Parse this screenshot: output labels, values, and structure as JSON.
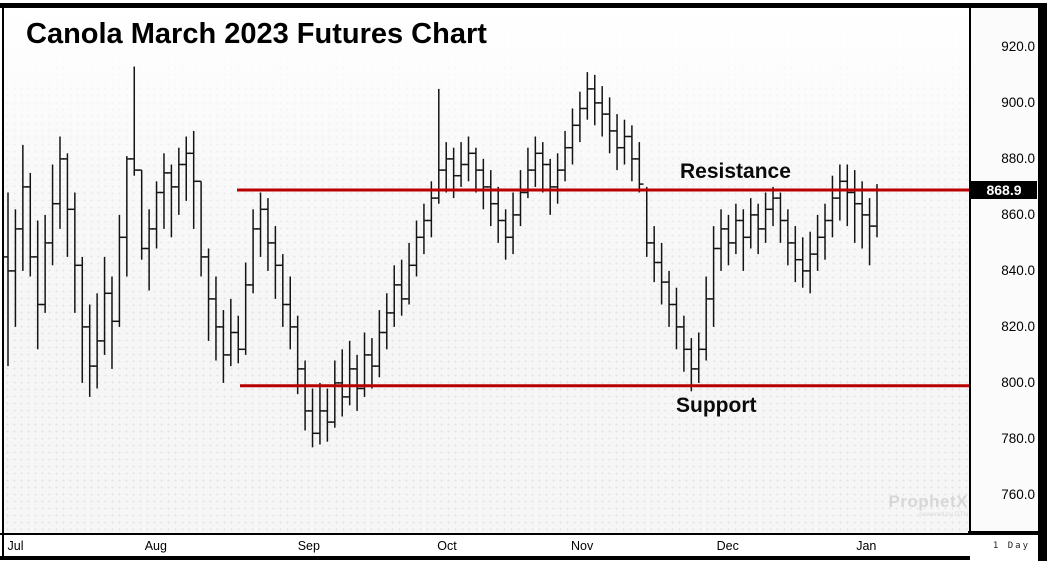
{
  "window": {
    "title": "Canola March 2023 Futures Chart",
    "interval_label": "1 Day"
  },
  "watermark": {
    "brand": "ProphetX",
    "sub": "powered by DTN"
  },
  "price_axis": {
    "current_price": "868.9",
    "tick_labels": [
      "920.0",
      "900.0",
      "880.0",
      "860.0",
      "840.0",
      "820.0",
      "800.0",
      "780.0",
      "760.0"
    ],
    "tick_values": [
      920,
      900,
      880,
      860,
      840,
      820,
      800,
      780,
      760
    ],
    "minor_step": 2
  },
  "annotations": {
    "resistance": {
      "label": "Resistance",
      "price": 868.9
    },
    "support": {
      "label": "Support",
      "price": 799.0
    }
  },
  "colors": {
    "annotation_red": "#b80000",
    "bar_black": "#141414",
    "current_price_bg": "#000000",
    "current_price_fg": "#ffffff",
    "plot_bg": "#f6f6f6"
  },
  "chart_data": {
    "type": "ohlc-bar",
    "title": "Canola March 2023 Futures Chart",
    "interval": "1 Day",
    "xlabel": "",
    "ylabel": "",
    "grid": false,
    "legend": false,
    "y_ticks": [
      920,
      900,
      880,
      860,
      840,
      820,
      800,
      780,
      760
    ],
    "y_visible_range": [
      747,
      934
    ],
    "last_price": 868.9,
    "months": [
      {
        "label": "Jul",
        "start_index": 0
      },
      {
        "label": "Aug",
        "start_index": 18
      },
      {
        "label": "Sep",
        "start_index": 38.6
      },
      {
        "label": "Oct",
        "start_index": 57.4
      },
      {
        "label": "Nov",
        "start_index": 75.4
      },
      {
        "label": "Dec",
        "start_index": 95
      },
      {
        "label": "Jan",
        "start_index": 113.8
      }
    ],
    "trendlines": [
      {
        "name": "resistance",
        "price": 868.9,
        "start_index": 31
      },
      {
        "name": "support",
        "price": 799.0,
        "start_index": 31
      }
    ],
    "bars_format": [
      "open",
      "high",
      "low",
      "close"
    ],
    "bars": [
      [
        845,
        868,
        806,
        840
      ],
      [
        840,
        862,
        820,
        855
      ],
      [
        855,
        885,
        840,
        870
      ],
      [
        870,
        875,
        838,
        845
      ],
      [
        845,
        858,
        812,
        828
      ],
      [
        828,
        860,
        825,
        850
      ],
      [
        850,
        878,
        842,
        864
      ],
      [
        864,
        888,
        855,
        880
      ],
      [
        880,
        882,
        845,
        862
      ],
      [
        862,
        868,
        825,
        842
      ],
      [
        842,
        845,
        800,
        820
      ],
      [
        820,
        828,
        795,
        806
      ],
      [
        806,
        832,
        798,
        815
      ],
      [
        815,
        845,
        810,
        832
      ],
      [
        832,
        838,
        805,
        822
      ],
      [
        822,
        860,
        820,
        852
      ],
      [
        852,
        881,
        838,
        880
      ],
      [
        880,
        913,
        874,
        876
      ],
      [
        876,
        876,
        844,
        848
      ],
      [
        848,
        862,
        833,
        855
      ],
      [
        855,
        872,
        848,
        868
      ],
      [
        868,
        882,
        855,
        875
      ],
      [
        875,
        878,
        852,
        870
      ],
      [
        870,
        884,
        860,
        878
      ],
      [
        878,
        888,
        865,
        882
      ],
      [
        882,
        890,
        855,
        872
      ],
      [
        872,
        872,
        838,
        845
      ],
      [
        845,
        848,
        815,
        830
      ],
      [
        830,
        838,
        808,
        820
      ],
      [
        820,
        826,
        800,
        810
      ],
      [
        810,
        830,
        806,
        818
      ],
      [
        818,
        824,
        807,
        812
      ],
      [
        812,
        843,
        810,
        835
      ],
      [
        835,
        862,
        832,
        855
      ],
      [
        855,
        868,
        845,
        862
      ],
      [
        862,
        866,
        840,
        850
      ],
      [
        850,
        856,
        830,
        842
      ],
      [
        842,
        846,
        820,
        828
      ],
      [
        828,
        838,
        812,
        820
      ],
      [
        820,
        824,
        796,
        805
      ],
      [
        805,
        808,
        783,
        790
      ],
      [
        790,
        798,
        777,
        782
      ],
      [
        782,
        800,
        778,
        790
      ],
      [
        790,
        798,
        779,
        786
      ],
      [
        786,
        808,
        784,
        800
      ],
      [
        800,
        812,
        788,
        795
      ],
      [
        795,
        815,
        792,
        805
      ],
      [
        805,
        810,
        790,
        798
      ],
      [
        798,
        818,
        795,
        810
      ],
      [
        810,
        816,
        798,
        806
      ],
      [
        806,
        826,
        802,
        818
      ],
      [
        818,
        832,
        812,
        825
      ],
      [
        825,
        842,
        820,
        835
      ],
      [
        835,
        844,
        824,
        830
      ],
      [
        830,
        850,
        828,
        842
      ],
      [
        842,
        858,
        838,
        852
      ],
      [
        852,
        864,
        846,
        858
      ],
      [
        858,
        872,
        852,
        866
      ],
      [
        866,
        905,
        864,
        876
      ],
      [
        876,
        886,
        868,
        880
      ],
      [
        880,
        884,
        866,
        874
      ],
      [
        874,
        886,
        870,
        878
      ],
      [
        878,
        888,
        872,
        882
      ],
      [
        882,
        884,
        868,
        876
      ],
      [
        876,
        880,
        862,
        870
      ],
      [
        870,
        876,
        856,
        864
      ],
      [
        864,
        870,
        850,
        858
      ],
      [
        858,
        862,
        844,
        852
      ],
      [
        852,
        868,
        846,
        860
      ],
      [
        860,
        876,
        856,
        868
      ],
      [
        868,
        884,
        866,
        876
      ],
      [
        876,
        888,
        870,
        882
      ],
      [
        882,
        886,
        868,
        878
      ],
      [
        878,
        880,
        860,
        870
      ],
      [
        870,
        882,
        864,
        876
      ],
      [
        876,
        890,
        872,
        884
      ],
      [
        884,
        898,
        878,
        892
      ],
      [
        892,
        904,
        886,
        898
      ],
      [
        898,
        911,
        894,
        905
      ],
      [
        905,
        910,
        892,
        900
      ],
      [
        900,
        906,
        888,
        896
      ],
      [
        896,
        902,
        882,
        890
      ],
      [
        890,
        896,
        876,
        884
      ],
      [
        884,
        894,
        878,
        888
      ],
      [
        888,
        892,
        872,
        880
      ],
      [
        880,
        886,
        868,
        871
      ],
      [
        869,
        870,
        845,
        850
      ],
      [
        850,
        856,
        836,
        843
      ],
      [
        843,
        850,
        828,
        836
      ],
      [
        836,
        840,
        820,
        828
      ],
      [
        828,
        834,
        812,
        820
      ],
      [
        820,
        824,
        804,
        812
      ],
      [
        812,
        816,
        797,
        805
      ],
      [
        805,
        818,
        800,
        812
      ],
      [
        812,
        838,
        808,
        830
      ],
      [
        830,
        856,
        820,
        848
      ],
      [
        848,
        862,
        840,
        855
      ],
      [
        855,
        860,
        842,
        850
      ],
      [
        850,
        864,
        846,
        858
      ],
      [
        858,
        862,
        840,
        852
      ],
      [
        852,
        866,
        848,
        860
      ],
      [
        860,
        864,
        846,
        855
      ],
      [
        855,
        868,
        850,
        862
      ],
      [
        862,
        870,
        856,
        866
      ],
      [
        866,
        868,
        850,
        858
      ],
      [
        858,
        862,
        842,
        850
      ],
      [
        850,
        856,
        836,
        844
      ],
      [
        844,
        852,
        834,
        840
      ],
      [
        840,
        854,
        832,
        846
      ],
      [
        846,
        860,
        840,
        852
      ],
      [
        852,
        864,
        844,
        858
      ],
      [
        858,
        874,
        852,
        866
      ],
      [
        866,
        878,
        858,
        872
      ],
      [
        872,
        878,
        856,
        868
      ],
      [
        868,
        876,
        850,
        864
      ],
      [
        864,
        872,
        848,
        860
      ],
      [
        860,
        866,
        842,
        856
      ],
      [
        856,
        871,
        852,
        868.9
      ]
    ]
  }
}
